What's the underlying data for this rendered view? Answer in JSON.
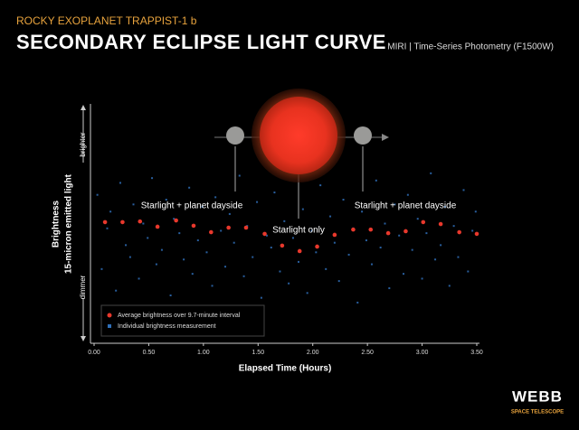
{
  "chart_data": {
    "type": "scatter",
    "subtitle": "ROCKY EXOPLANET TRAPPIST-1 b",
    "title": "SECONDARY ECLIPSE LIGHT CURVE",
    "instrument": "MIRI | Time-Series Photometry (F1500W)",
    "xlabel": "Elapsed Time (Hours)",
    "ylabel": "Brightness",
    "ylabel_detail": "15-micron emitted light",
    "y_top_label": "brighter",
    "y_bottom_label": "dimmer",
    "annotations": [
      "Starlight + planet dayside",
      "Starlight only",
      "Starlight + planet dayside"
    ],
    "xlim": [
      0,
      3.5
    ],
    "ylim": [
      0,
      1
    ],
    "xticks": [
      {
        "value": 0,
        "label": "0.00"
      },
      {
        "value": 0.5,
        "label": "0.50"
      },
      {
        "value": 1,
        "label": "1.00"
      },
      {
        "value": 1.5,
        "label": "1.50"
      },
      {
        "value": 2,
        "label": "2.00"
      },
      {
        "value": 2.5,
        "label": "2.50"
      },
      {
        "value": 3,
        "label": "3.00"
      },
      {
        "value": 3.5,
        "label": "3.50"
      }
    ],
    "series": [
      {
        "name": "Average brightness over 9.7-minute interval",
        "color": "#e8382c",
        "x": [
          0.1,
          0.26,
          0.42,
          0.58,
          0.75,
          0.91,
          1.07,
          1.23,
          1.39,
          1.56,
          1.72,
          1.88,
          2.04,
          2.2,
          2.37,
          2.53,
          2.69,
          2.85,
          3.01,
          3.17,
          3.34,
          3.5
        ],
        "values": [
          0.506,
          0.506,
          0.509,
          0.487,
          0.513,
          0.491,
          0.464,
          0.483,
          0.483,
          0.457,
          0.408,
          0.385,
          0.404,
          0.453,
          0.475,
          0.475,
          0.46,
          0.468,
          0.506,
          0.498,
          0.464,
          0.457
        ]
      },
      {
        "name": "Individual brightness measurement",
        "color": "#2f6fb8",
        "x": [
          0.03,
          0.07,
          0.12,
          0.15,
          0.2,
          0.24,
          0.29,
          0.33,
          0.36,
          0.41,
          0.45,
          0.49,
          0.53,
          0.57,
          0.62,
          0.66,
          0.7,
          0.73,
          0.78,
          0.82,
          0.87,
          0.9,
          0.95,
          0.99,
          1.03,
          1.08,
          1.11,
          1.16,
          1.2,
          1.24,
          1.28,
          1.33,
          1.37,
          1.4,
          1.45,
          1.49,
          1.53,
          1.58,
          1.62,
          1.65,
          1.7,
          1.74,
          1.78,
          1.82,
          1.87,
          1.91,
          1.95,
          1.99,
          2.03,
          2.07,
          2.12,
          2.16,
          2.2,
          2.24,
          2.28,
          2.33,
          2.37,
          2.41,
          2.45,
          2.49,
          2.54,
          2.58,
          2.62,
          2.66,
          2.7,
          2.75,
          2.79,
          2.83,
          2.87,
          2.91,
          2.96,
          3.0,
          3.04,
          3.08,
          3.12,
          3.17,
          3.21,
          3.25,
          3.29,
          3.33,
          3.38,
          3.42,
          3.46,
          3.49
        ],
        "values": [
          0.62,
          0.31,
          0.48,
          0.55,
          0.22,
          0.67,
          0.41,
          0.36,
          0.58,
          0.27,
          0.5,
          0.44,
          0.69,
          0.33,
          0.39,
          0.6,
          0.2,
          0.52,
          0.46,
          0.35,
          0.65,
          0.29,
          0.43,
          0.57,
          0.38,
          0.24,
          0.61,
          0.47,
          0.32,
          0.54,
          0.42,
          0.7,
          0.28,
          0.49,
          0.36,
          0.59,
          0.19,
          0.45,
          0.4,
          0.63,
          0.3,
          0.51,
          0.25,
          0.44,
          0.34,
          0.56,
          0.21,
          0.47,
          0.38,
          0.66,
          0.31,
          0.53,
          0.42,
          0.26,
          0.6,
          0.37,
          0.48,
          0.17,
          0.55,
          0.43,
          0.33,
          0.68,
          0.4,
          0.5,
          0.23,
          0.58,
          0.45,
          0.29,
          0.62,
          0.39,
          0.52,
          0.27,
          0.46,
          0.71,
          0.35,
          0.41,
          0.57,
          0.24,
          0.49,
          0.36,
          0.64,
          0.3,
          0.47,
          0.55
        ]
      }
    ]
  },
  "branding": {
    "name": "WEBB",
    "tagline": "SPACE TELESCOPE"
  }
}
